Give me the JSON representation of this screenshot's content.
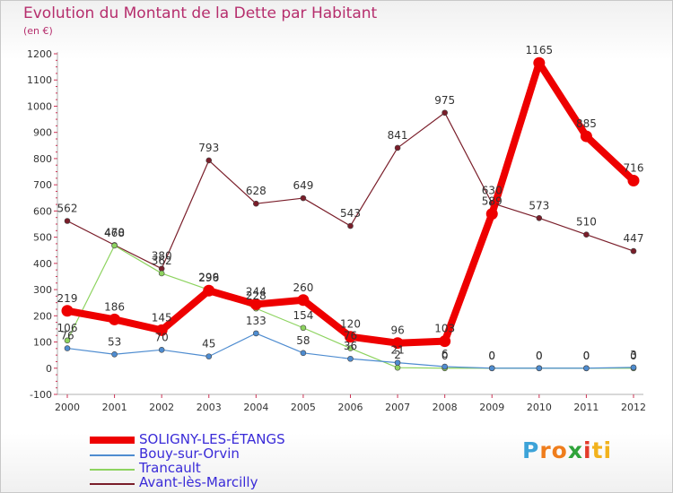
{
  "title": "Evolution du Montant de la Dette par Habitant",
  "subtitle": "(en €)",
  "brand": "Proxiti",
  "chart_data": {
    "type": "line",
    "title": "Evolution du Montant de la Dette par Habitant",
    "subtitle": "(en €)",
    "categories": [
      "2000",
      "2001",
      "2002",
      "2003",
      "2004",
      "2005",
      "2006",
      "2007",
      "2008",
      "2009",
      "2010",
      "2011",
      "2012"
    ],
    "ylim": [
      -100,
      1200
    ],
    "yticks": [
      -100,
      0,
      100,
      200,
      300,
      400,
      500,
      600,
      700,
      800,
      900,
      1000,
      1100,
      1200
    ],
    "grid": false,
    "legend_position": "bottom-left",
    "series": [
      {
        "name": "Avant-lès-Marcilly",
        "color": "#7a1e2a",
        "values": [
          562,
          470,
          380,
          793,
          628,
          649,
          543,
          841,
          975,
          630,
          573,
          510,
          447
        ]
      },
      {
        "name": "Trancault",
        "color": "#8dd35f",
        "values": [
          106,
          468,
          362,
          299,
          228,
          154,
          76,
          2,
          0,
          0,
          0,
          0,
          0
        ]
      },
      {
        "name": "Bouy-sur-Orvin",
        "color": "#4e8cd0",
        "values": [
          76,
          53,
          70,
          45,
          133,
          58,
          36,
          21,
          6,
          0,
          0,
          0,
          3
        ]
      },
      {
        "name": "SOLIGNY-LES-ÉTANGS",
        "color": "#ee0000",
        "values": [
          219,
          186,
          145,
          296,
          244,
          260,
          120,
          96,
          103,
          589,
          1165,
          885,
          716
        ]
      }
    ]
  }
}
